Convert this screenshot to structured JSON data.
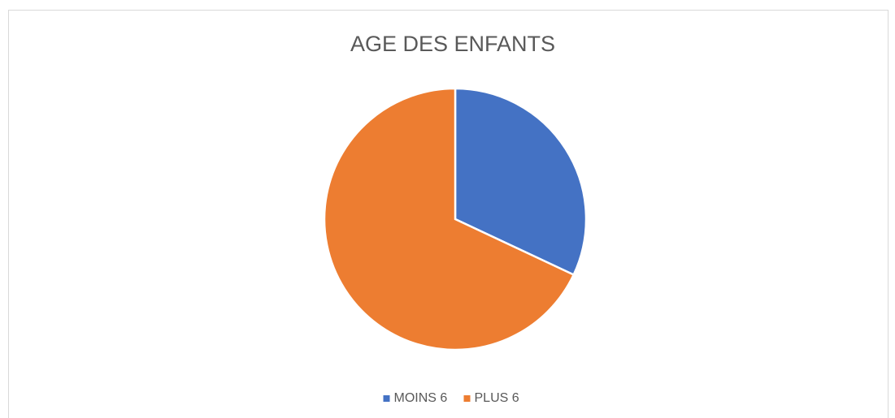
{
  "chart_data": {
    "type": "pie",
    "title": "AGE DES ENFANTS",
    "categories": [
      "MOINS 6",
      "PLUS 6"
    ],
    "values": [
      32,
      68
    ],
    "colors": [
      "#4472c4",
      "#ed7d31"
    ],
    "legend": "bottom"
  }
}
